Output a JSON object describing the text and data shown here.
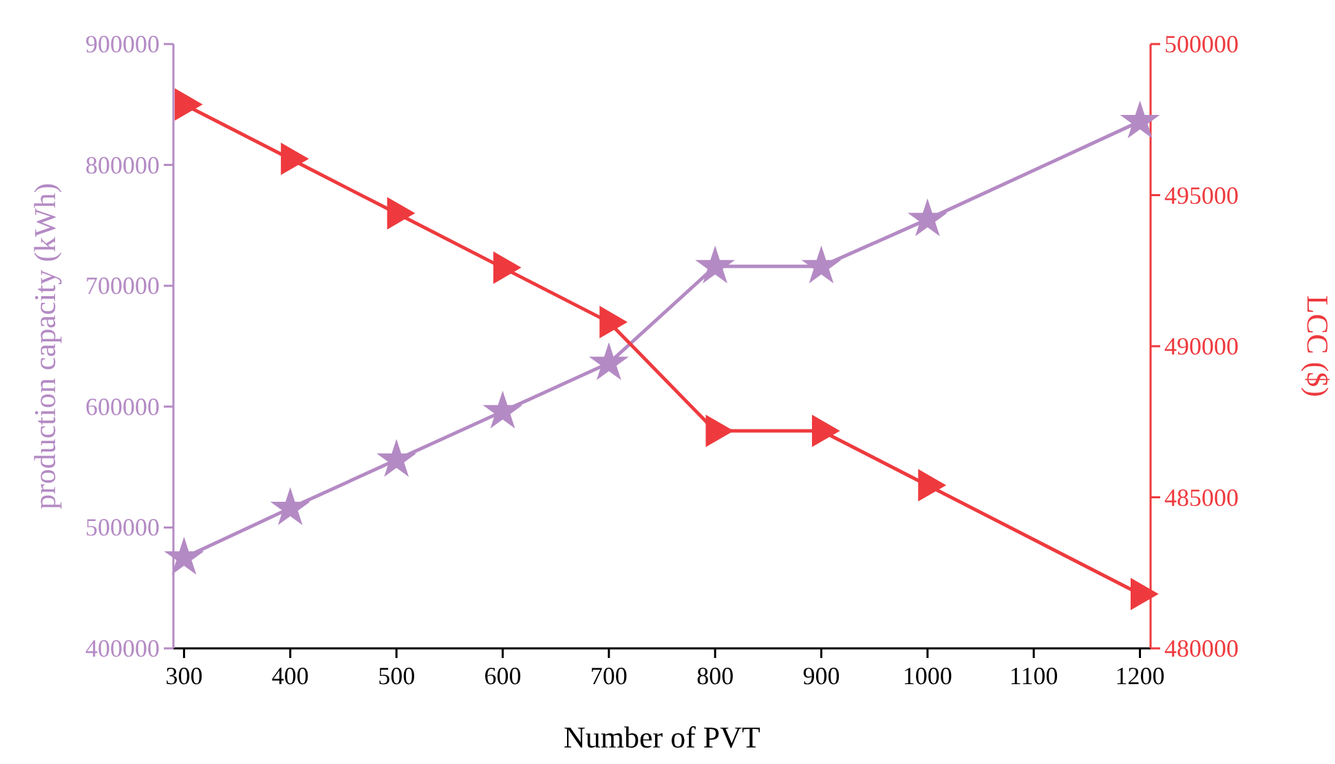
{
  "chart_data": {
    "type": "line",
    "xlabel": "Number of PVT",
    "ylabel": "production capacity (kWh)",
    "y2label": "LCC ($)",
    "x": [
      300,
      400,
      500,
      600,
      700,
      800,
      900,
      1000,
      1200
    ],
    "xlim": [
      290,
      1210
    ],
    "xticks": [
      300,
      400,
      500,
      600,
      700,
      800,
      900,
      1000,
      1100,
      1200
    ],
    "ylim": [
      400000,
      900000
    ],
    "yticks": [
      400000,
      500000,
      600000,
      700000,
      800000,
      900000
    ],
    "y2lim": [
      480000,
      500000
    ],
    "y2ticks": [
      480000,
      485000,
      490000,
      495000,
      500000
    ],
    "grid": false,
    "line_style": "solid",
    "series": [
      {
        "color": "#b48ac4",
        "marker": "star",
        "values": [
          475000,
          516000,
          556000,
          596000,
          636000,
          716000,
          716000,
          755000,
          836000
        ]
      },
      {
        "color": "#ee3a3e",
        "marker": "triangle",
        "axis": "y2",
        "values": [
          498000,
          496200,
          494400,
          492600,
          490800,
          487200,
          487200,
          485400,
          481800
        ]
      }
    ]
  }
}
